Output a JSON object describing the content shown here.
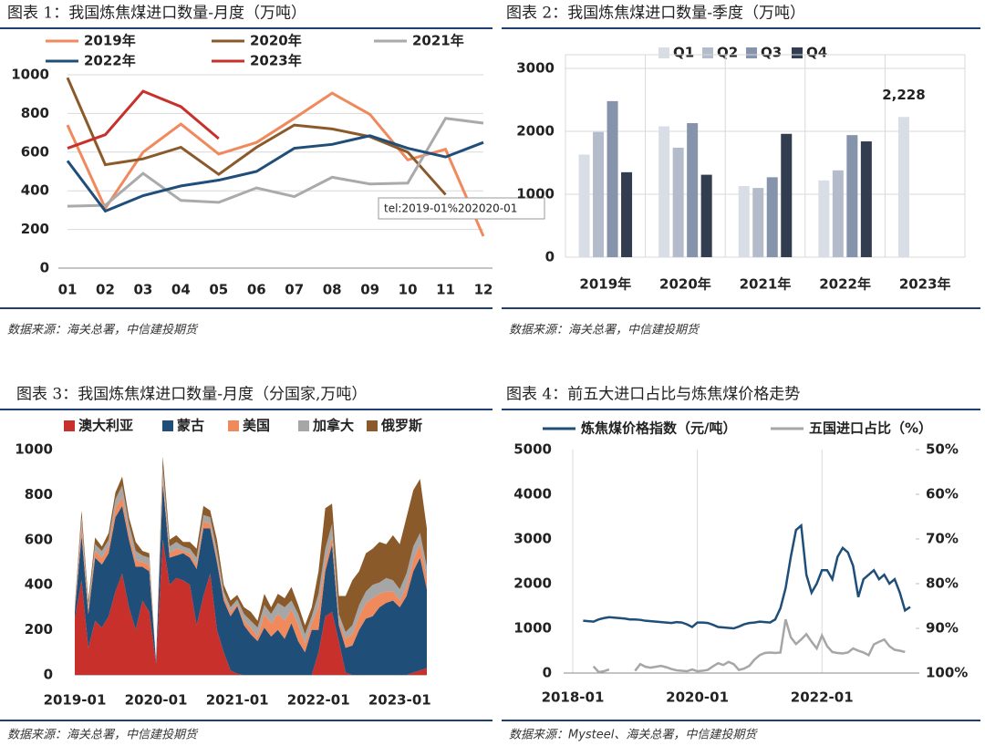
{
  "chart_data": [
    {
      "type": "line",
      "title": "图表 1：我国炼焦煤进口数量-月度（万吨）",
      "source": "数据来源：海关总署，中信建投期货",
      "annotation": "tel:2019-01%202020-01",
      "categories": [
        "01",
        "02",
        "03",
        "04",
        "05",
        "06",
        "07",
        "08",
        "09",
        "10",
        "11",
        "12"
      ],
      "series": [
        {
          "name": "2019年",
          "color": "#f08a5d",
          "values": [
            740,
            310,
            600,
            745,
            590,
            650,
            775,
            905,
            795,
            560,
            615,
            165
          ]
        },
        {
          "name": "2020年",
          "color": "#8b5a2b",
          "values": [
            985,
            535,
            565,
            625,
            485,
            625,
            740,
            720,
            680,
            600,
            380,
            null
          ]
        },
        {
          "name": "2021年",
          "color": "#aaaaaa",
          "values": [
            320,
            325,
            490,
            350,
            340,
            415,
            370,
            470,
            435,
            440,
            775,
            750
          ]
        },
        {
          "name": "2022年",
          "color": "#1f4e79",
          "values": [
            555,
            295,
            375,
            425,
            455,
            500,
            620,
            640,
            685,
            620,
            575,
            650
          ]
        },
        {
          "name": "2023年",
          "color": "#c8302c",
          "values": [
            620,
            690,
            915,
            835,
            670,
            null,
            null,
            null,
            null,
            null,
            null,
            null
          ]
        }
      ],
      "ylim": [
        0,
        1000
      ],
      "yticks": [
        0,
        200,
        400,
        600,
        800,
        1000
      ],
      "grid": true
    },
    {
      "type": "bar",
      "title": "图表 2：我国炼焦煤进口数量-季度（万吨）",
      "source": "数据来源：海关总署，中信建投期货",
      "categories": [
        "2019年",
        "2020年",
        "2021年",
        "2022年",
        "2023年"
      ],
      "series": [
        {
          "name": "Q1",
          "color": "#d9dde5",
          "values": [
            1630,
            2080,
            1130,
            1220,
            2228
          ],
          "value_labels": [
            null,
            null,
            null,
            null,
            "2,228"
          ]
        },
        {
          "name": "Q2",
          "color": "#b4bccb",
          "values": [
            1990,
            1740,
            1100,
            1380,
            null
          ]
        },
        {
          "name": "Q3",
          "color": "#8593ab",
          "values": [
            2480,
            2130,
            1270,
            1940,
            null
          ]
        },
        {
          "name": "Q4",
          "color": "#333d50",
          "values": [
            1350,
            1310,
            1960,
            1840,
            null
          ]
        }
      ],
      "ylim": [
        0,
        3000
      ],
      "yticks": [
        0,
        1000,
        2000,
        3000
      ],
      "grid": true
    },
    {
      "type": "area",
      "title": "图表 3：我国炼焦煤进口数量-月度（分国家,万吨）",
      "source": "数据来源：海关总署，中信建投期货",
      "categories": [
        "2019-01",
        null,
        null,
        null,
        null,
        null,
        null,
        null,
        null,
        null,
        null,
        null,
        "2020-01",
        null,
        null,
        null,
        null,
        null,
        null,
        null,
        null,
        null,
        null,
        null,
        "2021-01",
        null,
        null,
        null,
        null,
        null,
        null,
        null,
        null,
        null,
        null,
        null,
        "2022-01",
        null,
        null,
        null,
        null,
        null,
        null,
        null,
        null,
        null,
        null,
        null,
        "2023-01",
        null,
        null,
        null,
        null
      ],
      "series": [
        {
          "name": "澳大利亚",
          "color": "#c8302c",
          "values": [
            250,
            420,
            120,
            240,
            210,
            260,
            370,
            450,
            300,
            200,
            330,
            280,
            50,
            600,
            400,
            430,
            420,
            400,
            220,
            350,
            450,
            200,
            100,
            20,
            5,
            0,
            0,
            0,
            0,
            0,
            0,
            0,
            0,
            0,
            0,
            0,
            100,
            260,
            280,
            150,
            10,
            0,
            0,
            0,
            0,
            0,
            0,
            0,
            0,
            0,
            10,
            20,
            30
          ]
        },
        {
          "name": "蒙古",
          "color": "#1f4e79",
          "values": [
            30,
            200,
            150,
            280,
            280,
            280,
            330,
            300,
            300,
            280,
            150,
            180,
            10,
            250,
            120,
            100,
            120,
            120,
            250,
            300,
            200,
            300,
            230,
            240,
            300,
            220,
            180,
            150,
            210,
            170,
            200,
            160,
            230,
            150,
            100,
            200,
            100,
            200,
            300,
            70,
            110,
            130,
            200,
            250,
            260,
            300,
            320,
            330,
            300,
            350,
            450,
            500,
            350
          ]
        },
        {
          "name": "美国",
          "color": "#f08a5d",
          "values": [
            10,
            40,
            20,
            30,
            30,
            30,
            40,
            40,
            30,
            30,
            20,
            30,
            0,
            30,
            20,
            30,
            10,
            20,
            20,
            30,
            20,
            20,
            20,
            20,
            10,
            20,
            30,
            20,
            60,
            60,
            70,
            80,
            60,
            70,
            40,
            30,
            100,
            40,
            30,
            20,
            40,
            50,
            60,
            70,
            80,
            60,
            50,
            40,
            30,
            40,
            50,
            60,
            50
          ]
        },
        {
          "name": "加拿大",
          "color": "#a6a6a6",
          "values": [
            10,
            40,
            20,
            30,
            30,
            30,
            40,
            50,
            40,
            40,
            30,
            30,
            0,
            40,
            30,
            30,
            20,
            20,
            30,
            30,
            30,
            30,
            20,
            20,
            20,
            30,
            30,
            40,
            40,
            40,
            50,
            60,
            40,
            50,
            40,
            30,
            60,
            60,
            60,
            30,
            30,
            40,
            50,
            50,
            60,
            50,
            60,
            50,
            50,
            60,
            60,
            50,
            50
          ]
        },
        {
          "name": "俄罗斯",
          "color": "#8b5a2b",
          "values": [
            10,
            30,
            20,
            30,
            20,
            30,
            30,
            40,
            30,
            40,
            20,
            20,
            0,
            50,
            30,
            30,
            20,
            30,
            40,
            40,
            30,
            50,
            30,
            30,
            20,
            30,
            40,
            30,
            50,
            30,
            40,
            40,
            60,
            40,
            40,
            40,
            100,
            180,
            90,
            80,
            160,
            200,
            150,
            170,
            160,
            180,
            150,
            200,
            200,
            250,
            250,
            240,
            170
          ]
        }
      ],
      "ylim": [
        0,
        1000
      ],
      "yticks": [
        0,
        200,
        400,
        600,
        800,
        1000
      ],
      "grid": false
    },
    {
      "type": "line",
      "title": "图表 4：前五大进口占比与炼焦煤价格走势",
      "source": "数据来源：Mysteel、海关总署，中信建投期货",
      "categories": [
        "2018-01",
        null,
        null,
        null,
        null,
        null,
        null,
        null,
        null,
        null,
        null,
        null,
        null,
        null,
        null,
        null,
        null,
        null,
        null,
        null,
        null,
        null,
        null,
        null,
        "2020-01",
        null,
        null,
        null,
        null,
        null,
        null,
        null,
        null,
        null,
        null,
        null,
        null,
        null,
        null,
        null,
        null,
        null,
        null,
        null,
        null,
        null,
        null,
        null,
        "2022-01",
        null,
        null,
        null,
        null,
        null,
        null,
        null,
        null,
        null,
        null,
        null,
        null,
        null,
        null,
        null,
        null,
        null
      ],
      "series": [
        {
          "name": "炼焦煤价格指数（元/吨）",
          "color": "#1f4e79",
          "values": [
            null,
            null,
            1170,
            1160,
            1150,
            1200,
            1230,
            1250,
            1240,
            1230,
            1220,
            1200,
            1200,
            1190,
            1170,
            1160,
            1150,
            1140,
            1130,
            1120,
            1140,
            1130,
            1090,
            1030,
            1130,
            1130,
            1120,
            1080,
            1030,
            1020,
            1010,
            1000,
            1040,
            1090,
            1120,
            1130,
            1150,
            1140,
            1130,
            1200,
            1450,
            1900,
            2600,
            3200,
            3300,
            2200,
            1800,
            2000,
            2300,
            2300,
            2100,
            2600,
            2800,
            2700,
            2400,
            1700,
            2100,
            2200,
            2300,
            2100,
            2200,
            2000,
            2100,
            1800,
            1400,
            1480
          ]
        },
        {
          "name": "五国进口占比（%）",
          "color": "#a6a6a6",
          "axis": "y2",
          "values": [
            null,
            null,
            null,
            null,
            98.5,
            99.8,
            99.6,
            99.2,
            null,
            null,
            null,
            null,
            99.5,
            98,
            98.6,
            98.8,
            98.6,
            98.4,
            98.7,
            99.1,
            99.4,
            99.5,
            99.6,
            99.2,
            99.6,
            99.5,
            99.3,
            98.5,
            97.8,
            98.2,
            97.5,
            98,
            99.3,
            99,
            98.4,
            97,
            96,
            95.5,
            95.4,
            95.5,
            95.4,
            88,
            92,
            93.5,
            92.5,
            91.3,
            93,
            94.5,
            91.6,
            94,
            95.3,
            95.5,
            95.6,
            95.4,
            94.5,
            95,
            95.4,
            96,
            93.6,
            93,
            92.5,
            94,
            94.8,
            95,
            95.3,
            null
          ]
        }
      ],
      "ylim": [
        0,
        5000
      ],
      "yticks": [
        0,
        1000,
        2000,
        3000,
        4000,
        5000
      ],
      "y2lim": [
        100,
        50
      ],
      "y2ticks": [
        {
          "value": 50,
          "label": "50%"
        },
        {
          "value": 60,
          "label": "60%"
        },
        {
          "value": 70,
          "label": "70%"
        },
        {
          "value": 80,
          "label": "80%"
        },
        {
          "value": 90,
          "label": "90%"
        },
        {
          "value": 100,
          "label": "100%"
        }
      ],
      "grid": "x"
    }
  ]
}
